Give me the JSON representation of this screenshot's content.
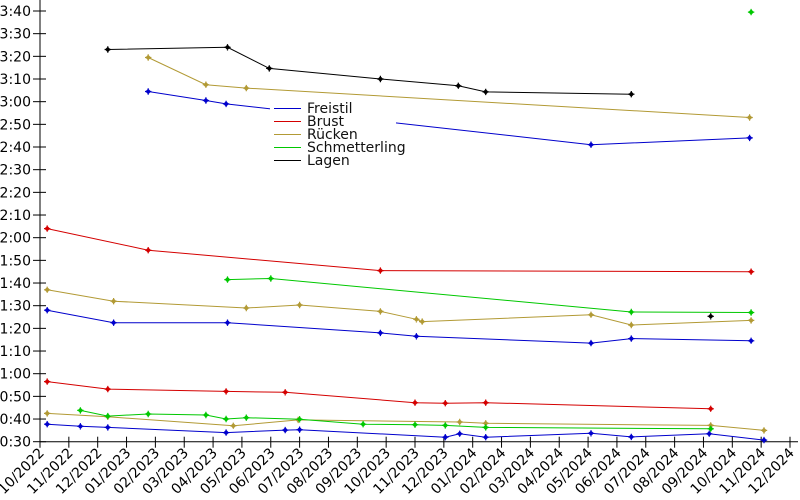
{
  "chart_data": {
    "type": "line",
    "title": "",
    "xlabel": "",
    "ylabel": "",
    "grid": false,
    "x_axis": {
      "labels": [
        "10/2022",
        "11/2022",
        "12/2022",
        "01/2023",
        "02/2023",
        "03/2023",
        "04/2023",
        "05/2023",
        "06/2023",
        "07/2023",
        "08/2023",
        "09/2023",
        "10/2023",
        "11/2023",
        "12/2023",
        "01/2024",
        "02/2024",
        "03/2024",
        "04/2024",
        "05/2024",
        "06/2024",
        "07/2024",
        "08/2024",
        "09/2024",
        "10/2024",
        "11/2024",
        "12/2024"
      ],
      "label_rotation_deg": -45,
      "unit": "month, x values below are fractional months after 10/2022"
    },
    "y_axis": {
      "tick_labels": [
        "0:30",
        "0:40",
        "0:50",
        "1:00",
        "1:10",
        "1:20",
        "1:30",
        "1:40",
        "1:50",
        "2:00",
        "2:10",
        "2:20",
        "2:30",
        "2:40",
        "2:50",
        "3:00",
        "3:10",
        "3:20",
        "3:30",
        "3:40"
      ],
      "min_seconds": 30,
      "max_seconds": 220,
      "step_seconds": 10,
      "format": "m:ss"
    },
    "legend": {
      "position": "center-left of plot, white background",
      "items": [
        {
          "label": "Freistil",
          "color": "#0000cc"
        },
        {
          "label": "Brust",
          "color": "#d40000"
        },
        {
          "label": "Rücken",
          "color": "#b29a35"
        },
        {
          "label": "Schmetterling",
          "color": "#00c800"
        },
        {
          "label": "Lagen",
          "color": "#000000"
        }
      ]
    },
    "series": [
      {
        "id": "freistil",
        "name": "Freistil",
        "color": "#0000cc",
        "lines": [
          [
            [
              3.75,
              184.5
            ],
            [
              5.75,
              180.5
            ],
            [
              6.45,
              179
            ],
            [
              19.1,
              161
            ],
            [
              24.6,
              164
            ]
          ],
          [
            [
              0.25,
              88
            ],
            [
              2.55,
              82.5
            ],
            [
              6.5,
              82.5
            ],
            [
              11.8,
              78
            ],
            [
              13.05,
              76.5
            ],
            [
              19.1,
              73.5
            ],
            [
              20.5,
              75.5
            ],
            [
              24.65,
              74.5
            ]
          ],
          [
            [
              0.25,
              37.7
            ],
            [
              1.4,
              36.8
            ],
            [
              2.35,
              36.3
            ],
            [
              6.45,
              34
            ],
            [
              8.5,
              35.1
            ],
            [
              9.0,
              35.3
            ],
            [
              14.05,
              32
            ],
            [
              14.55,
              33.5
            ],
            [
              15.45,
              32
            ],
            [
              19.1,
              33.7
            ],
            [
              20.5,
              32.1
            ],
            [
              23.2,
              33.5
            ],
            [
              25.1,
              30.7
            ]
          ]
        ]
      },
      {
        "id": "brust",
        "name": "Brust",
        "color": "#d40000",
        "lines": [
          [
            [
              0.25,
              124
            ],
            [
              3.75,
              114.5
            ],
            [
              11.8,
              105.5
            ],
            [
              24.65,
              105
            ]
          ],
          [
            [
              0.25,
              56.5
            ],
            [
              2.35,
              53.2
            ],
            [
              6.45,
              52.2
            ],
            [
              8.5,
              51.8
            ],
            [
              13.0,
              47.2
            ],
            [
              14.05,
              47
            ],
            [
              15.45,
              47.2
            ],
            [
              23.25,
              44.5
            ]
          ]
        ]
      },
      {
        "id": "ruecken",
        "name": "Rücken",
        "color": "#b29a35",
        "lines": [
          [
            [
              3.75,
              199.5
            ],
            [
              5.75,
              187.5
            ],
            [
              7.15,
              186
            ],
            [
              24.6,
              173
            ]
          ],
          [
            [
              0.25,
              97
            ],
            [
              2.55,
              92
            ],
            [
              7.15,
              89
            ],
            [
              9.0,
              90.3
            ],
            [
              11.8,
              87.5
            ],
            [
              13.05,
              84
            ],
            [
              13.25,
              83
            ],
            [
              19.1,
              86
            ],
            [
              20.5,
              81.5
            ],
            [
              24.65,
              83.5
            ]
          ],
          [
            [
              0.25,
              42.5
            ],
            [
              2.35,
              41
            ],
            [
              6.7,
              37
            ],
            [
              8.95,
              39.6
            ],
            [
              14.55,
              38.7
            ],
            [
              15.45,
              38.1
            ],
            [
              23.25,
              37.2
            ],
            [
              25.1,
              35
            ]
          ]
        ]
      },
      {
        "id": "schmetterling",
        "name": "Schmetterling",
        "color": "#00c800",
        "lines": [
          [
            [
              24.65,
              219.5
            ]
          ],
          [
            [
              6.5,
              101.5
            ],
            [
              8.0,
              102
            ],
            [
              20.5,
              87.2
            ],
            [
              24.65,
              87
            ]
          ],
          [
            [
              1.4,
              43.8
            ],
            [
              2.35,
              41.3
            ],
            [
              3.75,
              42.2
            ],
            [
              5.75,
              41.8
            ],
            [
              6.45,
              40
            ],
            [
              7.15,
              40.6
            ],
            [
              9.0,
              39.9
            ],
            [
              11.2,
              37.7
            ],
            [
              13.0,
              37.5
            ],
            [
              14.05,
              37.2
            ],
            [
              15.45,
              36.3
            ],
            [
              23.25,
              35.7
            ]
          ]
        ]
      },
      {
        "id": "lagen",
        "name": "Lagen",
        "color": "#000000",
        "lines": [
          [
            [
              2.35,
              203
            ],
            [
              6.5,
              204
            ],
            [
              7.95,
              194.7
            ],
            [
              11.8,
              190
            ],
            [
              14.5,
              187
            ],
            [
              15.45,
              184.3
            ],
            [
              20.5,
              183.3
            ]
          ],
          [
            [
              23.25,
              85.3
            ]
          ]
        ]
      }
    ]
  }
}
